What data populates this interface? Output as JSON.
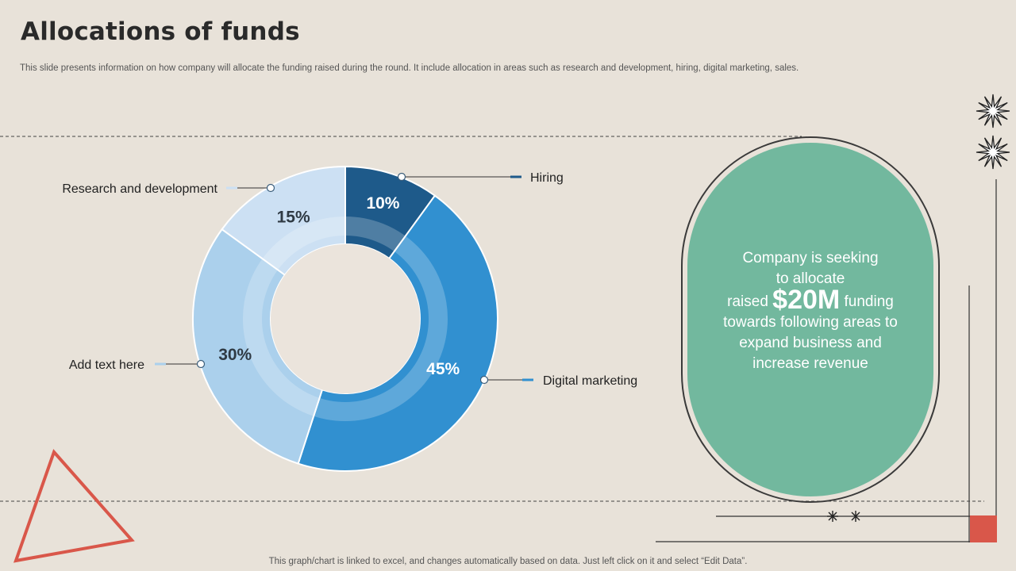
{
  "slide": {
    "title": "Allocations of funds",
    "subtitle": "This slide presents information on how company will allocate the funding raised during the round. It include allocation in areas such as research and development, hiring, digital marketing, sales.",
    "footer": "This graph/chart is linked to excel,  and changes automatically based on data. Just left click on it and select “Edit Data”."
  },
  "chart_data": {
    "type": "pie",
    "subtype": "doughnut",
    "title": "",
    "slices": [
      {
        "label": "Hiring",
        "value": 10,
        "value_label": "10%",
        "color": "#1e5a8a",
        "text_color": "#ffffff"
      },
      {
        "label": "Digital marketing",
        "value": 45,
        "value_label": "45%",
        "color": "#3190d0",
        "text_color": "#ffffff"
      },
      {
        "label": "Add text here",
        "value": 30,
        "value_label": "30%",
        "color": "#abd0ec",
        "text_color": "#2f3a44"
      },
      {
        "label": "Research and development",
        "value": 15,
        "value_label": "15%",
        "color": "#cce0f3",
        "text_color": "#2f3a44"
      }
    ]
  },
  "callout": {
    "line1": "Company  is seeking",
    "line2": "to allocate",
    "line3_pre": "raised ",
    "amount": "$20M",
    "line3_post": " funding",
    "line4": "towards following areas to",
    "line5": "expand business and",
    "line6": "increase revenue"
  },
  "colors": {
    "background": "#e8e2d9",
    "accent_green": "#72b89e",
    "accent_red": "#d9574a"
  }
}
